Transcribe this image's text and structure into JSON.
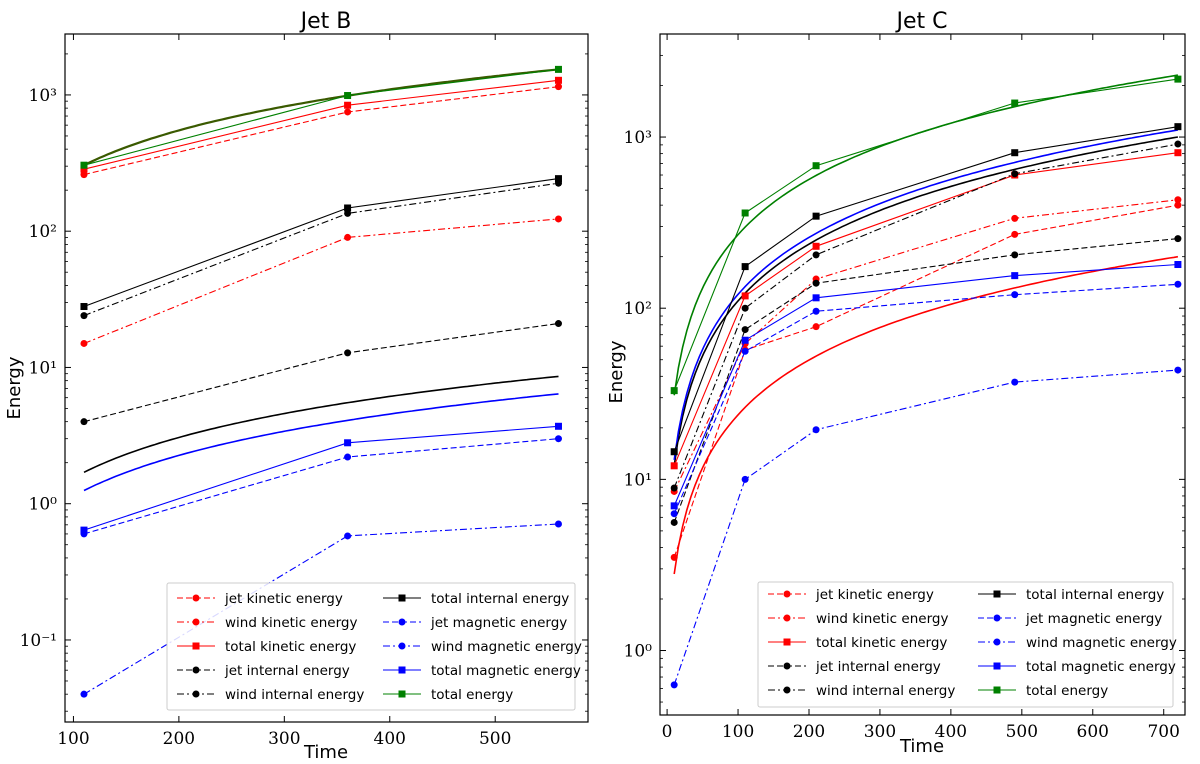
{
  "chart_data": [
    {
      "type": "line",
      "title": "Jet B",
      "xlabel": "Time",
      "ylabel": "Energy",
      "xlim": [
        92,
        588
      ],
      "ylim": [
        0.025,
        2800
      ],
      "yscale": "log",
      "xticks": [
        100,
        200,
        300,
        400,
        500
      ],
      "ytick_labels": [
        "10⁻¹",
        "10⁰",
        "10¹",
        "10²",
        "10³"
      ],
      "ytick_values": [
        0.1,
        1,
        10,
        100,
        1000
      ],
      "legend_position": "lower-right",
      "series": [
        {
          "name": "jet kinetic energy",
          "color": "#ff0000",
          "dash": "dashed",
          "marker": "circle",
          "x": [
            110,
            360,
            560
          ],
          "y": [
            260,
            750,
            1150
          ]
        },
        {
          "name": "wind kinetic energy",
          "color": "#ff0000",
          "dash": "dashdot",
          "marker": "circle",
          "x": [
            110,
            360,
            560
          ],
          "y": [
            15,
            90,
            123
          ]
        },
        {
          "name": "total kinetic energy",
          "color": "#ff0000",
          "dash": "solid",
          "marker": "square",
          "x": [
            110,
            360,
            560
          ],
          "y": [
            285,
            840,
            1280
          ]
        },
        {
          "name": "jet internal energy",
          "color": "#000000",
          "dash": "dashed",
          "marker": "circle",
          "x": [
            110,
            360,
            560
          ],
          "y": [
            4.0,
            12.8,
            21
          ]
        },
        {
          "name": "wind internal energy",
          "color": "#000000",
          "dash": "dashdot",
          "marker": "circle",
          "x": [
            110,
            360,
            560
          ],
          "y": [
            24,
            135,
            225
          ]
        },
        {
          "name": "total internal energy",
          "color": "#000000",
          "dash": "solid",
          "marker": "square",
          "x": [
            110,
            360,
            560
          ],
          "y": [
            28,
            148,
            243
          ]
        },
        {
          "name": "jet magnetic energy",
          "color": "#0000ff",
          "dash": "dashed",
          "marker": "circle",
          "x": [
            110,
            360,
            560
          ],
          "y": [
            0.6,
            2.2,
            3.0
          ]
        },
        {
          "name": "wind magnetic energy",
          "color": "#0000ff",
          "dash": "dashdot",
          "marker": "circle",
          "x": [
            110,
            360,
            560
          ],
          "y": [
            0.04,
            0.58,
            0.71
          ]
        },
        {
          "name": "total magnetic energy",
          "color": "#0000ff",
          "dash": "solid",
          "marker": "square",
          "x": [
            110,
            360,
            560
          ],
          "y": [
            0.64,
            2.8,
            3.7
          ]
        },
        {
          "name": "total energy",
          "color": "#008000",
          "dash": "solid",
          "marker": "square",
          "x": [
            110,
            360,
            560
          ],
          "y": [
            305,
            990,
            1540
          ]
        }
      ],
      "fits": [
        {
          "color": "#000000",
          "width": 1.6,
          "x0": 110,
          "y0": 1.7,
          "x1": 560,
          "y1": 8.6
        },
        {
          "color": "#0000ff",
          "width": 1.6,
          "x0": 110,
          "y0": 1.25,
          "x1": 560,
          "y1": 6.4
        },
        {
          "color": "#3a5a00",
          "width": 2.2,
          "x0": 110,
          "y0": 305,
          "x1": 560,
          "y1": 1540
        }
      ]
    },
    {
      "type": "line",
      "title": "Jet C",
      "xlabel": "Time",
      "ylabel": "Energy",
      "xlim": [
        -10,
        730
      ],
      "ylim": [
        0.42,
        4000
      ],
      "yscale": "log",
      "xticks": [
        0,
        100,
        200,
        300,
        400,
        500,
        600,
        700
      ],
      "ytick_labels": [
        "10⁰",
        "10¹",
        "10²",
        "10³"
      ],
      "ytick_values": [
        1,
        10,
        100,
        1000
      ],
      "legend_position": "lower-right",
      "series": [
        {
          "name": "jet kinetic energy",
          "color": "#ff0000",
          "dash": "dashed",
          "marker": "circle",
          "x": [
            10,
            110,
            210,
            490,
            720
          ],
          "y": [
            3.5,
            57,
            78,
            270,
            400
          ]
        },
        {
          "name": "wind kinetic energy",
          "color": "#ff0000",
          "dash": "dashdot",
          "marker": "circle",
          "x": [
            10,
            110,
            210,
            490,
            720
          ],
          "y": [
            8.5,
            62,
            148,
            335,
            430
          ]
        },
        {
          "name": "total kinetic energy",
          "color": "#ff0000",
          "dash": "solid",
          "marker": "square",
          "x": [
            10,
            110,
            210,
            490,
            720
          ],
          "y": [
            12,
            118,
            230,
            600,
            810
          ]
        },
        {
          "name": "jet internal energy",
          "color": "#000000",
          "dash": "dashed",
          "marker": "circle",
          "x": [
            10,
            110,
            210,
            490,
            720
          ],
          "y": [
            5.6,
            75,
            140,
            205,
            255
          ]
        },
        {
          "name": "wind internal energy",
          "color": "#000000",
          "dash": "dashdot",
          "marker": "circle",
          "x": [
            10,
            110,
            210,
            490,
            720
          ],
          "y": [
            8.9,
            100,
            205,
            610,
            910
          ]
        },
        {
          "name": "total internal energy",
          "color": "#000000",
          "dash": "solid",
          "marker": "square",
          "x": [
            10,
            110,
            210,
            490,
            720
          ],
          "y": [
            14.5,
            175,
            345,
            810,
            1150
          ]
        },
        {
          "name": "jet magnetic energy",
          "color": "#0000ff",
          "dash": "dashed",
          "marker": "circle",
          "x": [
            10,
            110,
            210,
            490,
            720
          ],
          "y": [
            6.3,
            56,
            96,
            120,
            138
          ]
        },
        {
          "name": "wind magnetic energy",
          "color": "#0000ff",
          "dash": "dashdot",
          "marker": "circle",
          "x": [
            10,
            110,
            210,
            490,
            720
          ],
          "y": [
            0.63,
            10,
            19.5,
            37,
            43.5
          ]
        },
        {
          "name": "total magnetic energy",
          "color": "#0000ff",
          "dash": "solid",
          "marker": "square",
          "x": [
            10,
            110,
            210,
            490,
            720
          ],
          "y": [
            7.0,
            65,
            115,
            155,
            180
          ]
        },
        {
          "name": "total energy",
          "color": "#008000",
          "dash": "solid",
          "marker": "square",
          "x": [
            10,
            110,
            210,
            490,
            720
          ],
          "y": [
            33,
            360,
            680,
            1580,
            2180
          ]
        }
      ],
      "fits": [
        {
          "color": "#ff0000",
          "width": 1.6,
          "x0": 10,
          "y0": 2.8,
          "x1": 720,
          "y1": 200
        },
        {
          "color": "#000000",
          "width": 1.6,
          "x0": 10,
          "y0": 12,
          "x1": 720,
          "y1": 1000
        },
        {
          "color": "#0000ff",
          "width": 1.6,
          "x0": 10,
          "y0": 13,
          "x1": 720,
          "y1": 1100
        },
        {
          "color": "#008000",
          "width": 1.6,
          "x0": 10,
          "y0": 31,
          "x1": 720,
          "y1": 2300
        }
      ]
    }
  ]
}
